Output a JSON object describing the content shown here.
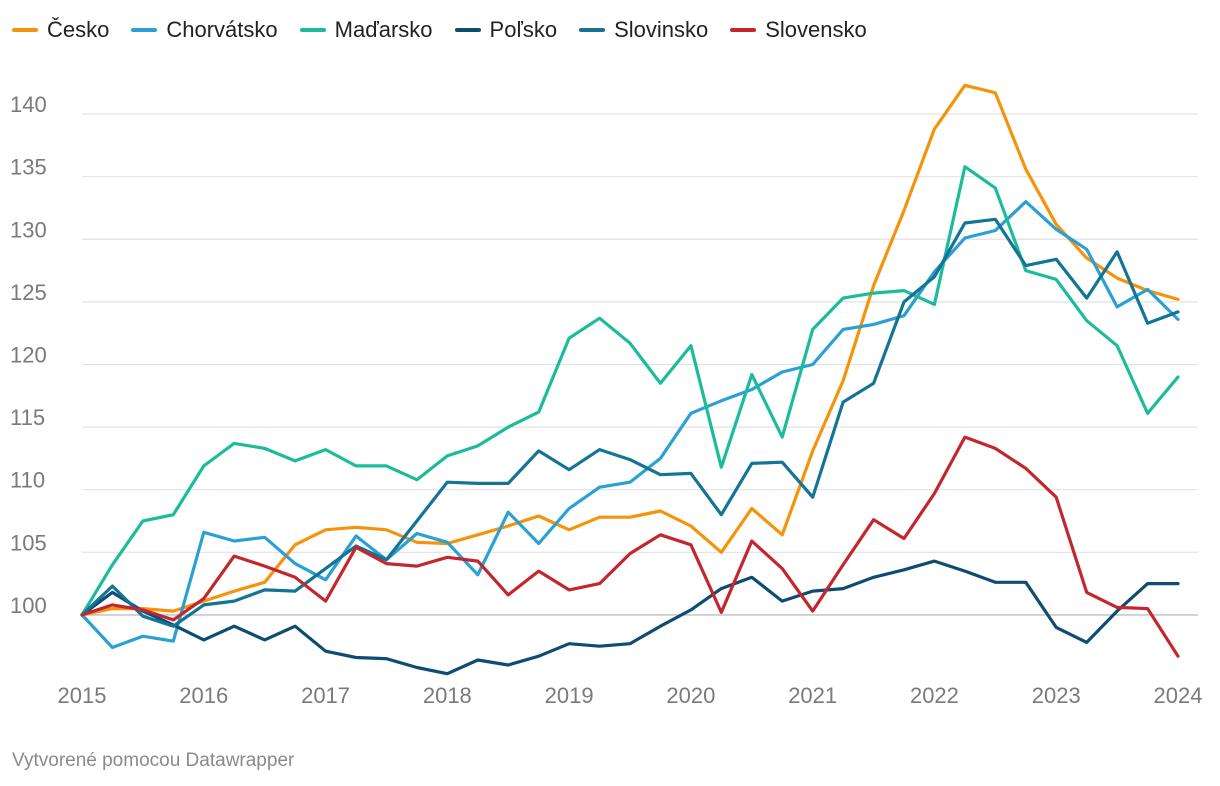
{
  "footer": {
    "credit": "Vytvorené pomocou Datawrapper"
  },
  "chart_data": {
    "type": "line",
    "title": "",
    "xlabel": "",
    "ylabel": "",
    "x_tick_labels": [
      "2015",
      "2016",
      "2017",
      "2018",
      "2019",
      "2020",
      "2021",
      "2022",
      "2023",
      "2024"
    ],
    "y_ticks": [
      100,
      105,
      110,
      115,
      120,
      125,
      130,
      135,
      140
    ],
    "xlim": [
      2015,
      2024
    ],
    "ylim": [
      95.2,
      144
    ],
    "grid": "horizontal",
    "legend_position": "top-left",
    "x": [
      2015.0,
      2015.25,
      2015.5,
      2015.75,
      2016.0,
      2016.25,
      2016.5,
      2016.75,
      2017.0,
      2017.25,
      2017.5,
      2017.75,
      2018.0,
      2018.25,
      2018.5,
      2018.75,
      2019.0,
      2019.25,
      2019.5,
      2019.75,
      2020.0,
      2020.25,
      2020.5,
      2020.75,
      2021.0,
      2021.25,
      2021.5,
      2021.75,
      2022.0,
      2022.25,
      2022.5,
      2022.75,
      2023.0,
      2023.25,
      2023.5,
      2023.75,
      2024.0
    ],
    "series": [
      {
        "name": "Česko",
        "color": "#f5930a",
        "values": [
          100.0,
          100.5,
          100.5,
          100.3,
          101.1,
          101.9,
          102.6,
          105.6,
          106.8,
          107.0,
          106.8,
          105.8,
          105.7,
          106.4,
          107.1,
          107.9,
          106.8,
          107.8,
          107.8,
          108.3,
          107.1,
          105.0,
          108.5,
          106.4,
          113.1,
          118.7,
          126.3,
          132.3,
          138.8,
          142.3,
          141.7,
          135.6,
          131.2,
          128.5,
          126.9,
          125.9,
          125.2
        ]
      },
      {
        "name": "Chorvátsko",
        "color": "#2aa0d4",
        "values": [
          100.0,
          97.4,
          98.3,
          97.9,
          106.6,
          105.9,
          106.2,
          104.1,
          102.8,
          106.3,
          104.4,
          106.5,
          105.8,
          103.2,
          108.2,
          105.7,
          108.5,
          110.2,
          110.6,
          112.5,
          116.1,
          117.1,
          118.0,
          119.4,
          120.0,
          122.8,
          123.2,
          123.9,
          127.4,
          130.1,
          130.7,
          133.0,
          130.8,
          129.2,
          124.6,
          126.0,
          123.6
        ]
      },
      {
        "name": "Maďarsko",
        "color": "#1bbc9b",
        "values": [
          100.0,
          104.0,
          107.5,
          108.0,
          111.9,
          113.7,
          113.3,
          112.3,
          113.2,
          111.9,
          111.9,
          110.8,
          112.7,
          113.5,
          115.0,
          116.2,
          122.1,
          123.7,
          121.7,
          118.5,
          121.5,
          111.8,
          119.2,
          114.2,
          122.8,
          125.3,
          125.7,
          125.9,
          124.8,
          135.8,
          134.1,
          127.5,
          126.8,
          123.5,
          121.5,
          116.1,
          119.0
        ]
      },
      {
        "name": "Poľsko",
        "color": "#0e4c71",
        "values": [
          100.0,
          101.8,
          100.3,
          99.2,
          98.0,
          99.1,
          98.0,
          99.1,
          97.1,
          96.6,
          96.5,
          95.8,
          95.3,
          96.4,
          96.0,
          96.7,
          97.7,
          97.5,
          97.7,
          99.1,
          100.4,
          102.1,
          103.0,
          101.1,
          101.9,
          102.1,
          103.0,
          103.6,
          104.3,
          103.5,
          102.6,
          102.6,
          99.0,
          97.8,
          100.3,
          102.5,
          102.5
        ]
      },
      {
        "name": "Slovinsko",
        "color": "#137496",
        "values": [
          100.0,
          102.3,
          99.9,
          99.1,
          100.8,
          101.1,
          102.0,
          101.9,
          103.7,
          105.5,
          104.4,
          107.5,
          110.6,
          110.5,
          110.5,
          113.1,
          111.6,
          113.2,
          112.4,
          111.2,
          111.3,
          108.0,
          112.1,
          112.2,
          109.4,
          117.0,
          118.5,
          125.0,
          127.0,
          131.3,
          131.6,
          127.9,
          128.4,
          125.3,
          129.0,
          123.3,
          124.2
        ]
      },
      {
        "name": "Slovensko",
        "color": "#c2272d",
        "values": [
          100.0,
          100.8,
          100.4,
          99.6,
          101.3,
          104.7,
          103.9,
          103.0,
          101.1,
          105.4,
          104.1,
          103.9,
          104.6,
          104.3,
          101.6,
          103.5,
          102.0,
          102.5,
          104.9,
          106.4,
          105.6,
          100.2,
          105.9,
          103.7,
          100.3,
          104.0,
          107.6,
          106.1,
          109.7,
          114.2,
          113.3,
          111.7,
          109.4,
          101.8,
          100.6,
          100.5,
          96.7
        ]
      }
    ]
  }
}
